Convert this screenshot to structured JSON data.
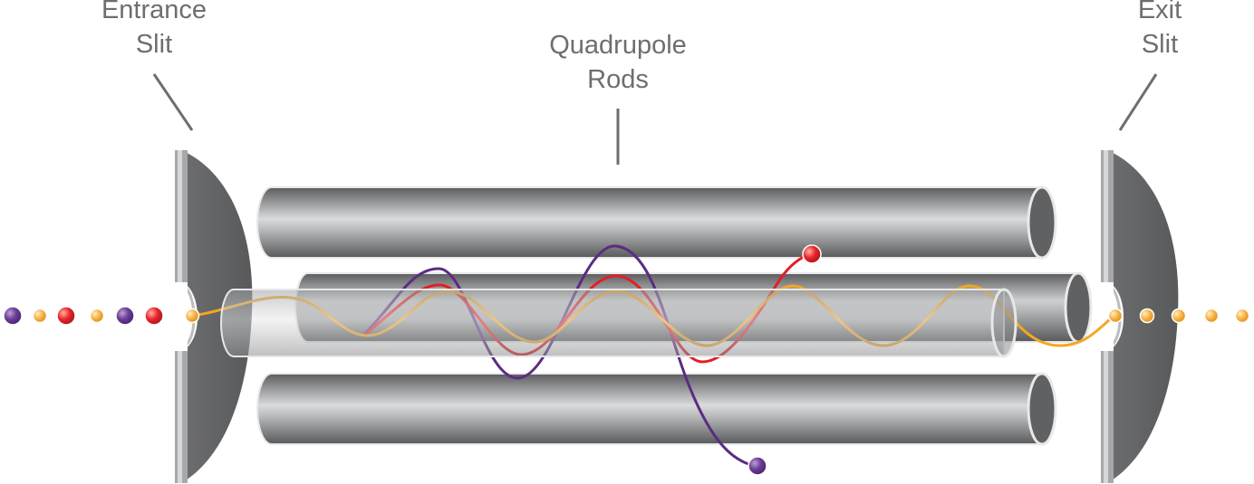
{
  "labels": {
    "entrance": {
      "line1": "Entrance",
      "line2": "Slit"
    },
    "rods": {
      "line1": "Quadrupole",
      "line2": "Rods"
    },
    "exit": {
      "line1": "Exit",
      "line2": "Slit"
    }
  },
  "colors": {
    "label_text": "#6d6e70",
    "leader_line": "#6d6e70",
    "rod_dark": "#5a5b5d",
    "rod_light": "#d9dadb",
    "slit_dark": "#616264",
    "ion_purple": "#5b2c83",
    "ion_red": "#e31e24",
    "ion_orange": "#f5a623"
  },
  "incoming_ions": [
    "purple",
    "orange",
    "red",
    "orange",
    "purple",
    "red"
  ],
  "outgoing_ions": [
    "orange",
    "orange",
    "orange",
    "orange",
    "orange"
  ]
}
